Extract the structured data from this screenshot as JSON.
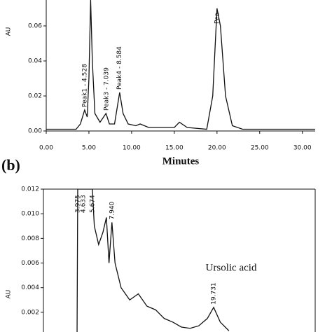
{
  "chart_data": [
    {
      "type": "line",
      "x_label": "Minutes",
      "y_label": "AU",
      "xlim": [
        0,
        31.5
      ],
      "ylim": [
        0,
        0.0748
      ],
      "xticks": [
        {
          "value": 0,
          "label": "0.00"
        },
        {
          "value": 5,
          "label": "5.00"
        },
        {
          "value": 10,
          "label": "10.00"
        },
        {
          "value": 15,
          "label": "15.00"
        },
        {
          "value": 20,
          "label": "20.00"
        },
        {
          "value": 25,
          "label": "25.00"
        },
        {
          "value": 30,
          "label": "30.00"
        }
      ],
      "yticks": [
        {
          "value": 0,
          "label": "0.00"
        },
        0.02,
        0.04,
        0.06
      ],
      "x": [
        0,
        3.5,
        4.0,
        4.5,
        4.8,
        5.0,
        5.2,
        5.4,
        5.7,
        6.3,
        7.0,
        7.4,
        8.0,
        8.6,
        9.0,
        9.6,
        10.5,
        11,
        12,
        15,
        15.6,
        16.5,
        18.8,
        19.5,
        20.0,
        20.4,
        21,
        21.8,
        23,
        31.5
      ],
      "series": [
        {
          "color": "#111111",
          "values": [
            0.001,
            0.001,
            0.004,
            0.012,
            0.008,
            0.03,
            0.0748,
            0.04,
            0.01,
            0.005,
            0.01,
            0.004,
            0.004,
            0.022,
            0.01,
            0.004,
            0.003,
            0.004,
            0.002,
            0.002,
            0.005,
            0.002,
            0.001,
            0.02,
            0.07,
            0.06,
            0.02,
            0.003,
            0.001,
            0.001
          ]
        }
      ],
      "peak_labels": [
        {
          "label": "Peak1 - 4.528",
          "x": 4.528,
          "y": 0.012
        },
        {
          "label": "Peak3 - 7.039",
          "x": 7.039,
          "y": 0.01
        },
        {
          "label": "Peak4 - 8.584",
          "x": 8.584,
          "y": 0.022
        },
        {
          "label": "Pea",
          "x": 20.0,
          "y": 0.07
        }
      ]
    },
    {
      "type": "line",
      "panel_label": "(b)",
      "y_label": "AU",
      "annotation": "Ursolic acid",
      "xlim": [
        0,
        31.5
      ],
      "ylim": [
        0.0004,
        0.012
      ],
      "yticks": [
        0.012,
        {
          "value": 0.01,
          "label": "0.010"
        },
        0.008,
        0.006,
        0.004,
        0.002
      ],
      "x": [
        3.9,
        3.975,
        4.3,
        4.633,
        5.0,
        5.674,
        5.9,
        6.4,
        6.9,
        7.3,
        7.6,
        7.94,
        8.3,
        9,
        10,
        11,
        12,
        13,
        14,
        15,
        16,
        17,
        18,
        19,
        19.731,
        20.5,
        21.5
      ],
      "series": [
        {
          "color": "#111111",
          "values": [
            0.0004,
            0.012,
            0.012,
            0.012,
            0.012,
            0.012,
            0.009,
            0.0075,
            0.0085,
            0.0097,
            0.006,
            0.0093,
            0.006,
            0.004,
            0.003,
            0.0035,
            0.0025,
            0.0022,
            0.0015,
            0.0012,
            0.0008,
            0.0007,
            0.0009,
            0.0015,
            0.0024,
            0.0012,
            0.0005
          ]
        }
      ],
      "peak_labels": [
        {
          "label": "3.975",
          "x": 3.975,
          "y": 0.012
        },
        {
          "label": "4.633",
          "x": 4.633,
          "y": 0.012
        },
        {
          "label": "5.674",
          "x": 5.674,
          "y": 0.012
        },
        {
          "label": "7.940",
          "x": 7.94,
          "y": 0.0093
        },
        {
          "label": "19.731",
          "x": 19.731,
          "y": 0.0024
        }
      ]
    }
  ]
}
